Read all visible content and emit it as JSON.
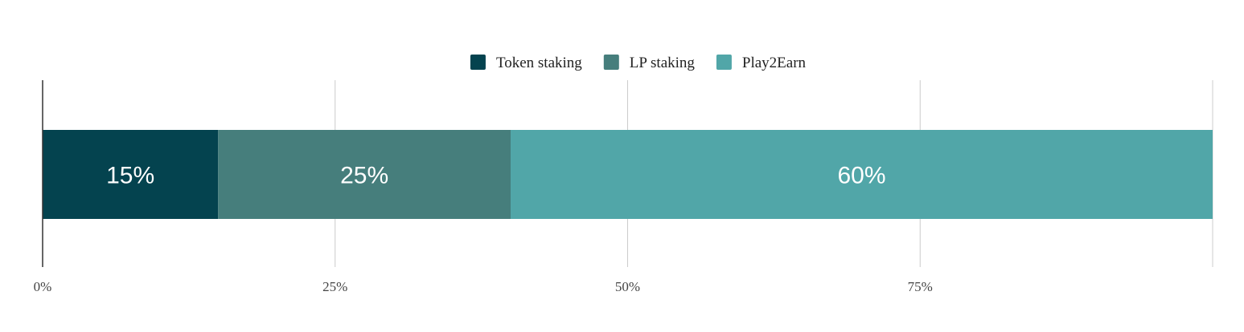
{
  "chart_data": {
    "type": "bar",
    "orientation": "horizontal",
    "stacked": true,
    "categories": [
      ""
    ],
    "series": [
      {
        "name": "Token staking",
        "values": [
          15
        ],
        "label": "15%",
        "color": "#04434f"
      },
      {
        "name": "LP staking",
        "values": [
          25
        ],
        "label": "25%",
        "color": "#467e7c"
      },
      {
        "name": "Play2Earn",
        "values": [
          60
        ],
        "label": "60%",
        "color": "#51a6a8"
      }
    ],
    "x_ticks": [
      {
        "value": 0,
        "label": "0%"
      },
      {
        "value": 25,
        "label": "25%"
      },
      {
        "value": 50,
        "label": "50%"
      },
      {
        "value": 75,
        "label": "75%"
      },
      {
        "value": 100,
        "label": ""
      }
    ],
    "xlim": [
      0,
      100
    ],
    "grid": true,
    "legend_position": "top-center",
    "title": "",
    "xlabel": "",
    "ylabel": ""
  }
}
